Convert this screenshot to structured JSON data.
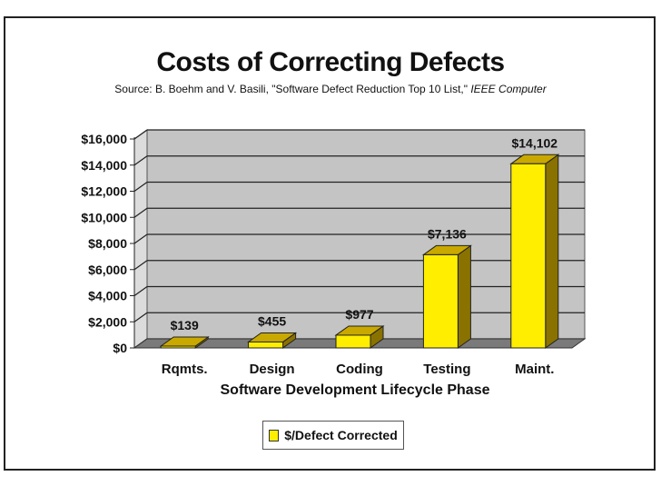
{
  "header": {
    "title": "Costs of Correcting Defects",
    "source_prefix": "Source: B. Boehm and V. Basili, \"Software Defect Reduction Top 10 List,\"",
    "source_journal": "IEEE Computer"
  },
  "colors": {
    "bar_front": "#ffee00",
    "bar_side": "#8a7200",
    "bar_top": "#c9a800",
    "wall": "#c4c4c4",
    "floor": "#7a7a7a"
  },
  "chart_data": {
    "type": "bar",
    "title": "Costs of Correcting Defects",
    "categories": [
      "Rqmts.",
      "Design",
      "Coding",
      "Testing",
      "Maint."
    ],
    "series": [
      {
        "name": "$/Defect Corrected",
        "values": [
          139,
          455,
          977,
          7136,
          14102
        ]
      }
    ],
    "data_labels": [
      "$139",
      "$455",
      "$977",
      "$7,136",
      "$14,102"
    ],
    "y_ticks": [
      0,
      2000,
      4000,
      6000,
      8000,
      10000,
      12000,
      14000,
      16000
    ],
    "y_tick_labels": [
      "$0",
      "$2,000",
      "$4,000",
      "$6,000",
      "$8,000",
      "$10,000",
      "$12,000",
      "$14,000",
      "$16,000"
    ],
    "ylim": [
      0,
      16000
    ],
    "xlabel": "Software Development Lifecycle Phase",
    "ylabel": "",
    "grid": true,
    "legend": {
      "position": "bottom-center",
      "label": "$/Defect Corrected"
    }
  }
}
